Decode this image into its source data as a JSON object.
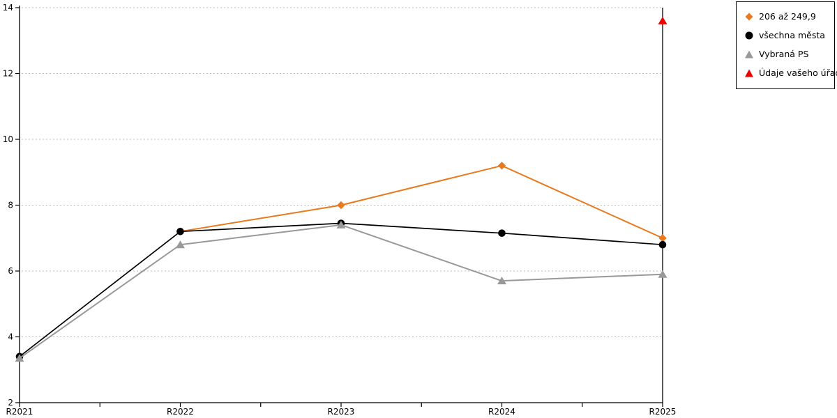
{
  "chart_data": {
    "type": "line",
    "title": "",
    "categories": [
      "R2021",
      "R2022",
      "R2023",
      "R2024",
      "R2025"
    ],
    "series": [
      {
        "name": "206 až 249,9",
        "marker": "diamond",
        "color": "#e8791d",
        "line": true,
        "values": [
          null,
          7.2,
          8.0,
          9.2,
          7.0
        ]
      },
      {
        "name": "všechna města",
        "marker": "circle",
        "color": "#000000",
        "line": true,
        "values": [
          3.4,
          7.2,
          7.45,
          7.15,
          6.8
        ]
      },
      {
        "name": "Vybraná PS",
        "marker": "triangle",
        "color": "#999999",
        "line": true,
        "values": [
          3.35,
          6.8,
          7.4,
          5.7,
          5.9
        ]
      },
      {
        "name": "Údaje vašeho úřadu",
        "marker": "triangle",
        "color": "#ee0000",
        "line": false,
        "values": [
          null,
          null,
          null,
          null,
          13.6
        ]
      }
    ],
    "xlabel": "",
    "ylabel": "",
    "ylim": [
      2,
      14
    ],
    "y_ticks": [
      2,
      4,
      6,
      8,
      10,
      12,
      14
    ],
    "grid": "horizontal-dashed",
    "grid_color": "#bdbdbd",
    "axis_color": "#000000",
    "highlight_x": "R2025",
    "legend_position": "top-right"
  }
}
